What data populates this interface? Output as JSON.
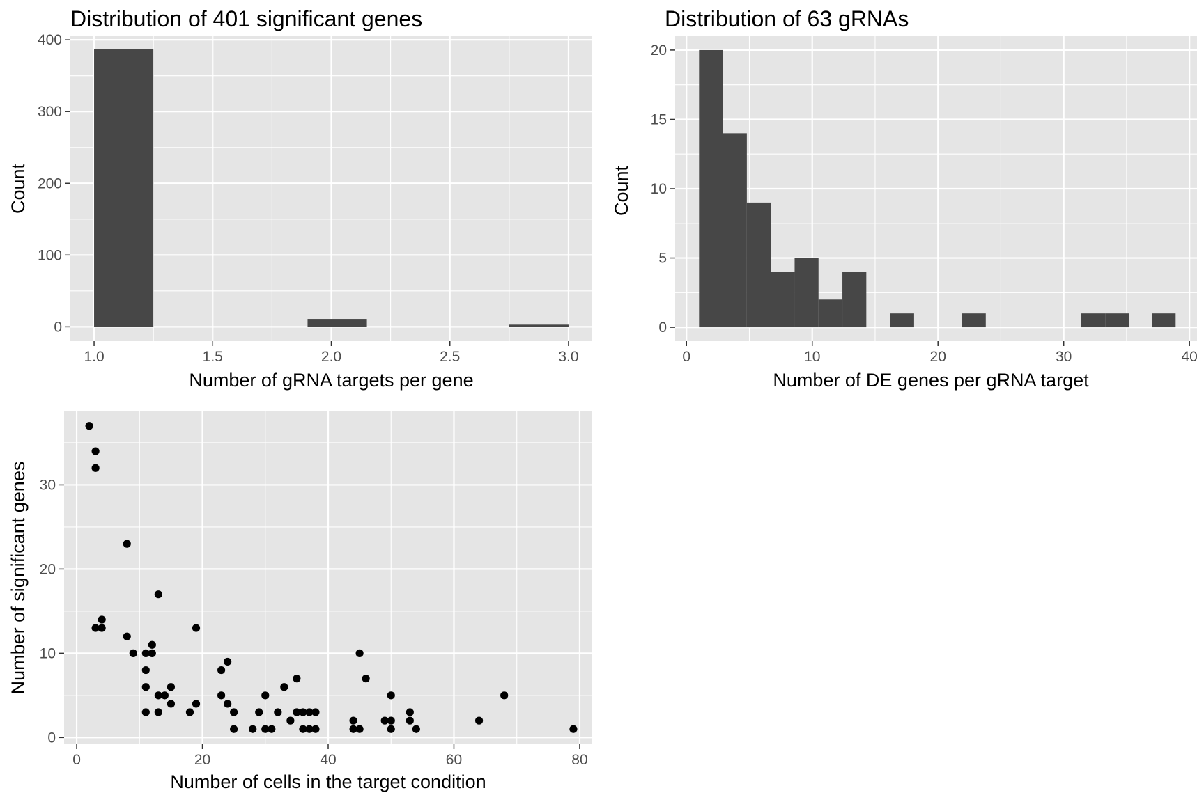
{
  "colors": {
    "panel_background": "#e5e5e5",
    "grid": "#ffffff",
    "bar_fill": "#474747",
    "point_fill": "#000000",
    "tick_text": "#4d4d4d"
  },
  "chart_data": [
    {
      "type": "bar",
      "title": "Distribution of 401 significant genes",
      "xlabel": "Number of gRNA targets per gene",
      "ylabel": "Count",
      "xlim": [
        0.9,
        3.1
      ],
      "ylim": [
        -20,
        405
      ],
      "x_ticks": [
        1.0,
        1.5,
        2.0,
        2.5,
        3.0
      ],
      "x_tick_labels": [
        "1.0",
        "1.5",
        "2.0",
        "2.5",
        "3.0"
      ],
      "y_ticks": [
        0,
        100,
        200,
        300,
        400
      ],
      "y_tick_labels": [
        "0",
        "100",
        "200",
        "300",
        "400"
      ],
      "x_minor": [
        1.25,
        1.75,
        2.25,
        2.75
      ],
      "y_minor": [
        50,
        150,
        250,
        350
      ],
      "grid": true,
      "bins": [
        {
          "x0": 1.0,
          "x1": 1.25,
          "count": 387
        },
        {
          "x0": 1.9,
          "x1": 2.15,
          "count": 11
        },
        {
          "x0": 2.75,
          "x1": 3.0,
          "count": 3
        }
      ]
    },
    {
      "type": "bar",
      "title": "Distribution of 63 gRNAs",
      "xlabel": "Number of DE genes per gRNA target",
      "ylabel": "Count",
      "xlim": [
        -0.9,
        40.6
      ],
      "ylim": [
        -1,
        21
      ],
      "x_ticks": [
        0,
        10,
        20,
        30,
        40
      ],
      "x_tick_labels": [
        "0",
        "10",
        "20",
        "30",
        "40"
      ],
      "y_ticks": [
        0,
        5,
        10,
        15,
        20
      ],
      "y_tick_labels": [
        "0",
        "5",
        "10",
        "15",
        "20"
      ],
      "x_minor": [
        5,
        15,
        25,
        35
      ],
      "y_minor": [
        2.5,
        7.5,
        12.5,
        17.5
      ],
      "grid": true,
      "bins": [
        {
          "x0": 1.0,
          "x1": 2.9,
          "count": 20
        },
        {
          "x0": 2.9,
          "x1": 4.8,
          "count": 14
        },
        {
          "x0": 4.8,
          "x1": 6.7,
          "count": 9
        },
        {
          "x0": 6.7,
          "x1": 8.6,
          "count": 4
        },
        {
          "x0": 8.6,
          "x1": 10.5,
          "count": 5
        },
        {
          "x0": 10.5,
          "x1": 12.4,
          "count": 2
        },
        {
          "x0": 12.4,
          "x1": 14.3,
          "count": 4
        },
        {
          "x0": 16.2,
          "x1": 18.1,
          "count": 1
        },
        {
          "x0": 21.9,
          "x1": 23.8,
          "count": 1
        },
        {
          "x0": 31.4,
          "x1": 33.3,
          "count": 1
        },
        {
          "x0": 33.3,
          "x1": 35.2,
          "count": 1
        },
        {
          "x0": 37.0,
          "x1": 38.9,
          "count": 1
        }
      ]
    },
    {
      "type": "scatter",
      "title": "",
      "xlabel": "Number of cells in the target condition",
      "ylabel": "Number of significant genes",
      "xlim": [
        -2,
        82
      ],
      "ylim": [
        -0.8,
        38.8
      ],
      "x_ticks": [
        0,
        20,
        40,
        60,
        80
      ],
      "x_tick_labels": [
        "0",
        "20",
        "40",
        "60",
        "80"
      ],
      "y_ticks": [
        0,
        10,
        20,
        30
      ],
      "y_tick_labels": [
        "0",
        "10",
        "20",
        "30"
      ],
      "x_minor": [
        10,
        30,
        50,
        70
      ],
      "y_minor": [
        5,
        15,
        25,
        35
      ],
      "grid": true,
      "points": [
        [
          2,
          37
        ],
        [
          3,
          34
        ],
        [
          3,
          32
        ],
        [
          3,
          13
        ],
        [
          4,
          14
        ],
        [
          4,
          13
        ],
        [
          8,
          23
        ],
        [
          8,
          12
        ],
        [
          9,
          10
        ],
        [
          11,
          10
        ],
        [
          11,
          8
        ],
        [
          11,
          6
        ],
        [
          11,
          3
        ],
        [
          12,
          11
        ],
        [
          12,
          10
        ],
        [
          13,
          17
        ],
        [
          13,
          5
        ],
        [
          13,
          3
        ],
        [
          14,
          5
        ],
        [
          15,
          6
        ],
        [
          15,
          4
        ],
        [
          18,
          3
        ],
        [
          19,
          13
        ],
        [
          19,
          4
        ],
        [
          23,
          8
        ],
        [
          23,
          5
        ],
        [
          24,
          9
        ],
        [
          24,
          4
        ],
        [
          25,
          3
        ],
        [
          25,
          1
        ],
        [
          28,
          1
        ],
        [
          29,
          3
        ],
        [
          30,
          5
        ],
        [
          30,
          1
        ],
        [
          31,
          1
        ],
        [
          32,
          3
        ],
        [
          33,
          6
        ],
        [
          34,
          2
        ],
        [
          35,
          7
        ],
        [
          35,
          3
        ],
        [
          36,
          3
        ],
        [
          36,
          1
        ],
        [
          37,
          3
        ],
        [
          37,
          1
        ],
        [
          38,
          3
        ],
        [
          38,
          1
        ],
        [
          44,
          2
        ],
        [
          44,
          1
        ],
        [
          45,
          10
        ],
        [
          45,
          1
        ],
        [
          46,
          7
        ],
        [
          49,
          2
        ],
        [
          50,
          5
        ],
        [
          50,
          2
        ],
        [
          50,
          1
        ],
        [
          53,
          3
        ],
        [
          53,
          2
        ],
        [
          54,
          1
        ],
        [
          64,
          2
        ],
        [
          68,
          5
        ],
        [
          79,
          1
        ]
      ]
    }
  ]
}
